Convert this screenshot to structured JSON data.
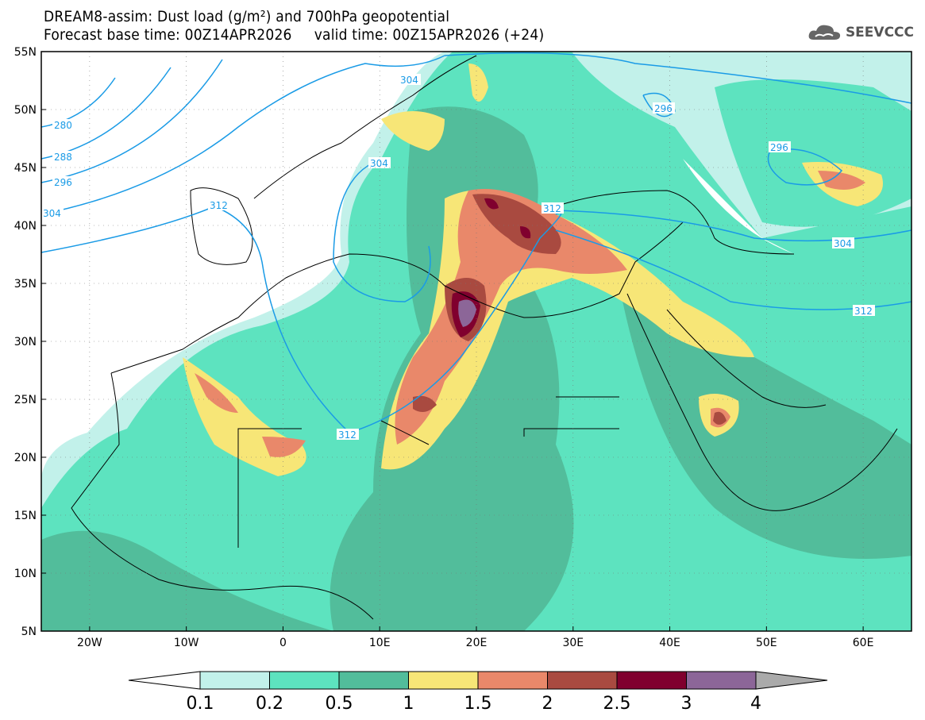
{
  "header": {
    "title_line1": "DREAM8-assim: Dust load (g/m²) and 700hPa geopotential",
    "title_line2": "Forecast base time: 00Z14APR2026     valid time: 00Z15APR2026 (+24)",
    "logo_text": "SEEVCCC"
  },
  "map": {
    "lat_labels": [
      "55N",
      "50N",
      "45N",
      "40N",
      "35N",
      "30N",
      "25N",
      "20N",
      "15N",
      "10N",
      "5N"
    ],
    "lon_labels": [
      "20W",
      "10W",
      "0",
      "10E",
      "20E",
      "30E",
      "40E",
      "50E",
      "60E"
    ],
    "contour_labels": [
      "280",
      "288",
      "296",
      "304",
      "312",
      "304",
      "304",
      "312",
      "312",
      "296",
      "296",
      "304",
      "312"
    ]
  },
  "colorbar": {
    "levels": [
      "0.1",
      "0.2",
      "0.5",
      "1",
      "1.5",
      "2",
      "2.5",
      "3",
      "4"
    ],
    "colors": [
      "#ffffff",
      "#c2f1ea",
      "#5de3bf",
      "#52bd9b",
      "#f7e677",
      "#e9886a",
      "#a94a40",
      "#80002e",
      "#8c6698",
      "#aaaaaa"
    ]
  }
}
